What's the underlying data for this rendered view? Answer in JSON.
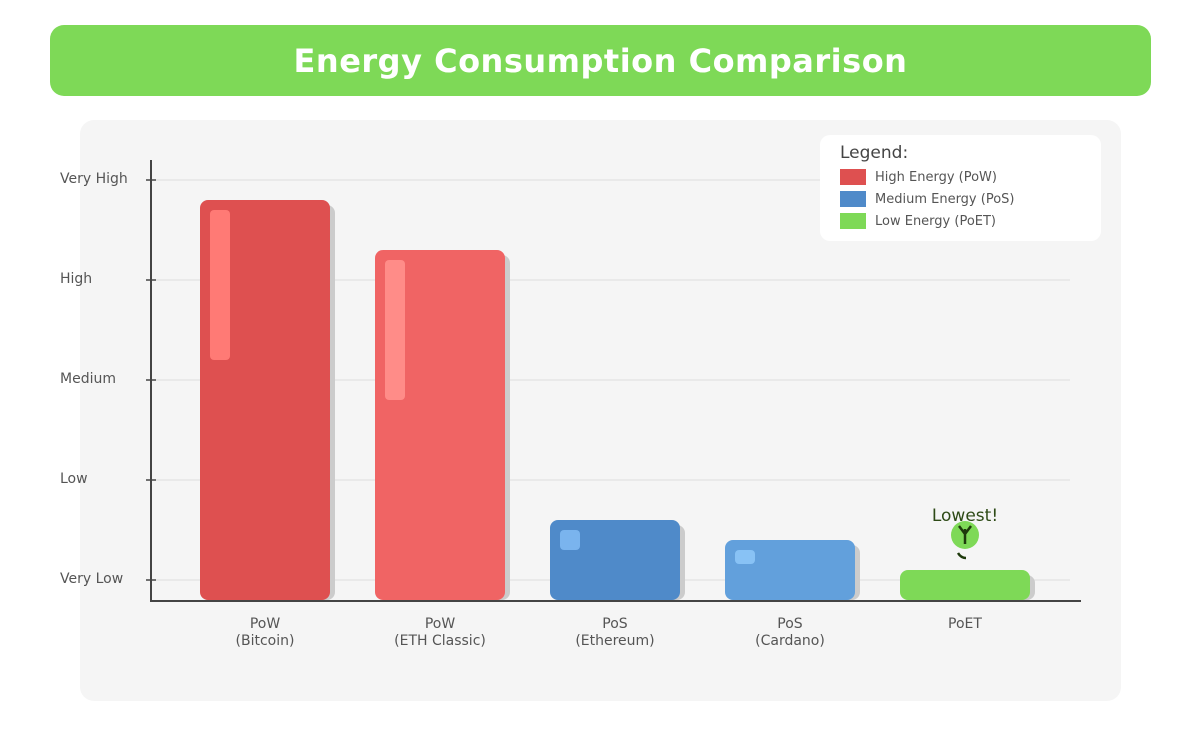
{
  "title": "Energy Consumption Comparison",
  "chart_data": {
    "type": "bar",
    "title": "Energy Consumption Comparison",
    "y_tick_labels": [
      "Very Low",
      "Low",
      "Medium",
      "High",
      "Very High"
    ],
    "y_tick_values": [
      1,
      2,
      3,
      4,
      5
    ],
    "ylim": [
      0.8,
      5.2
    ],
    "grid": true,
    "categories": [
      [
        "PoW",
        "(Bitcoin)"
      ],
      [
        "PoW",
        "(ETH Classic)"
      ],
      [
        "PoS",
        "(Ethereum)"
      ],
      [
        "PoS",
        "(Cardano)"
      ],
      [
        "PoET"
      ]
    ],
    "values": [
      4.8,
      4.3,
      1.6,
      1.4,
      1.1
    ],
    "colors": [
      "#de5050",
      "#f06464",
      "#4f8ac9",
      "#62a0dc",
      "#7ed957"
    ],
    "highlight_colors": [
      "#ff7a75",
      "#ff8c88",
      "#7ab4ee",
      "#88c2f5",
      null
    ],
    "annotation": {
      "text": "Lowest!",
      "category_index": 4,
      "icon": "sprout-icon"
    },
    "legend": {
      "title": "Legend:",
      "placement": "top-right",
      "items": [
        {
          "label": "High Energy (PoW)",
          "color": "#de5050"
        },
        {
          "label": "Medium Energy (PoS)",
          "color": "#4f8ac9"
        },
        {
          "label": "Low Energy (PoET)",
          "color": "#7ed957"
        }
      ]
    }
  }
}
